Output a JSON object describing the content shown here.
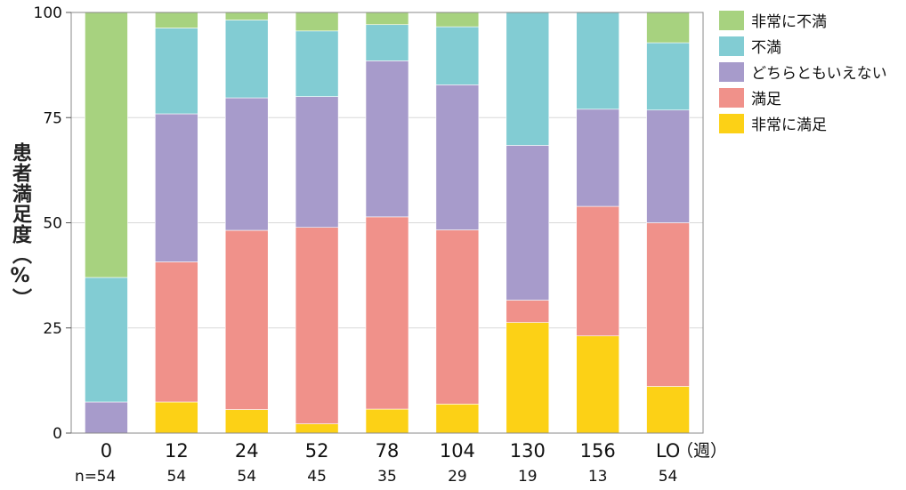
{
  "chart_data": {
    "type": "bar",
    "stacked": true,
    "ylabel": "患者満足度（%）",
    "xunit": "（週）",
    "ylim": [
      0,
      100
    ],
    "yticks": [
      0,
      25,
      50,
      75,
      100
    ],
    "grid": true,
    "legend_position": "right",
    "n_label": "n=",
    "categories": [
      "0",
      "12",
      "24",
      "52",
      "78",
      "104",
      "130",
      "156",
      "LO"
    ],
    "n_values": [
      "54",
      "54",
      "54",
      "45",
      "35",
      "29",
      "19",
      "13",
      "54"
    ],
    "series": [
      {
        "name": "非常に満足",
        "color": "#fcd116",
        "values": [
          0,
          7.4,
          5.6,
          2.2,
          5.7,
          6.9,
          26.3,
          23.1,
          11.1
        ]
      },
      {
        "name": "満足",
        "color": "#f0918a",
        "values": [
          0,
          33.3,
          42.6,
          46.7,
          45.7,
          41.4,
          5.3,
          30.8,
          38.9
        ]
      },
      {
        "name": "どちらともいえない",
        "color": "#a79bcb",
        "values": [
          7.4,
          35.2,
          31.5,
          31.1,
          37.1,
          34.5,
          36.8,
          23.1,
          26.8
        ]
      },
      {
        "name": "不満",
        "color": "#82ccd3",
        "values": [
          29.6,
          20.4,
          18.5,
          15.6,
          8.6,
          13.8,
          31.6,
          23.1,
          16.0
        ]
      },
      {
        "name": "非常に不満",
        "color": "#a7d27f",
        "values": [
          63.0,
          3.7,
          1.8,
          4.4,
          2.9,
          3.4,
          0,
          0,
          7.2
        ]
      }
    ]
  }
}
